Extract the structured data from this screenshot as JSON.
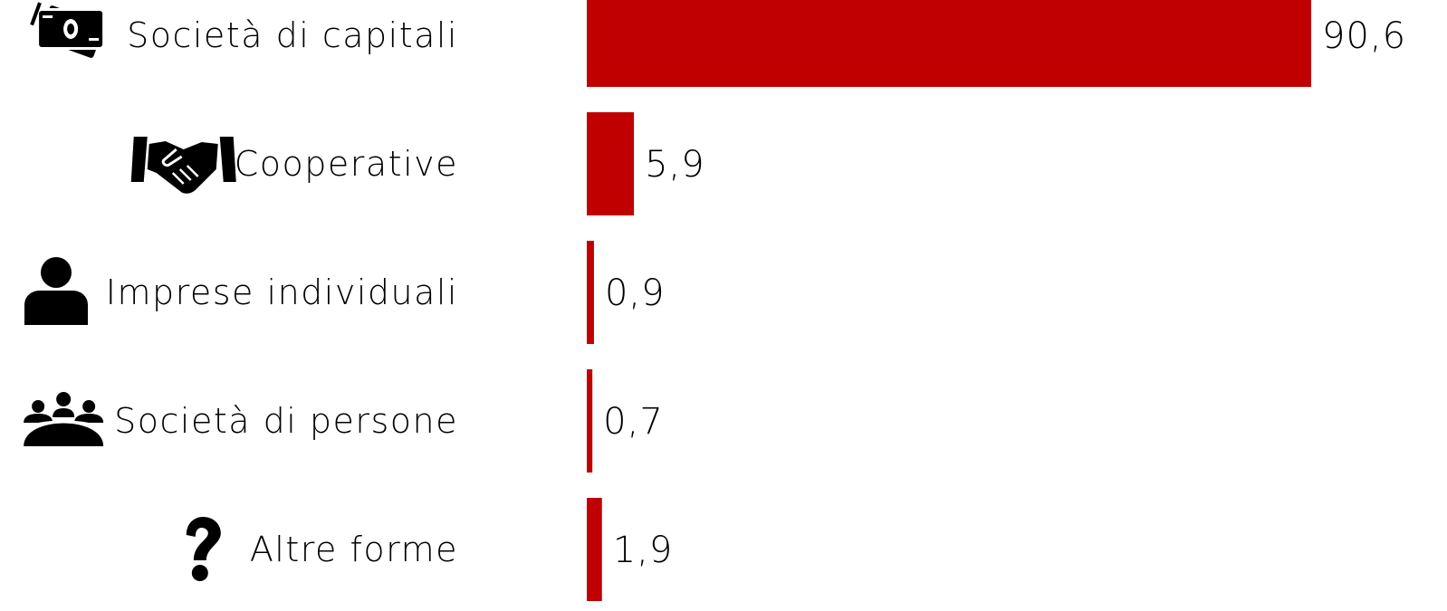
{
  "chart_data": {
    "type": "bar",
    "orientation": "horizontal",
    "categories": [
      "Società di capitali",
      "Cooperative",
      "Imprese individuali",
      "Società di persone",
      "Altre forme"
    ],
    "values": [
      90.6,
      5.9,
      0.9,
      0.7,
      1.9
    ],
    "value_labels": [
      "90,6",
      "5,9",
      "0,9",
      "0,7",
      "1,9"
    ],
    "icons": [
      "banknotes-icon",
      "handshake-icon",
      "person-icon",
      "group-icon",
      "question-icon"
    ],
    "title": "",
    "xlabel": "",
    "ylabel": "",
    "xlim": [
      0,
      90.6
    ],
    "grid": false,
    "legend": "none",
    "colors": {
      "bar": "#c00000",
      "text": "#000000",
      "icon": "#000000"
    }
  }
}
